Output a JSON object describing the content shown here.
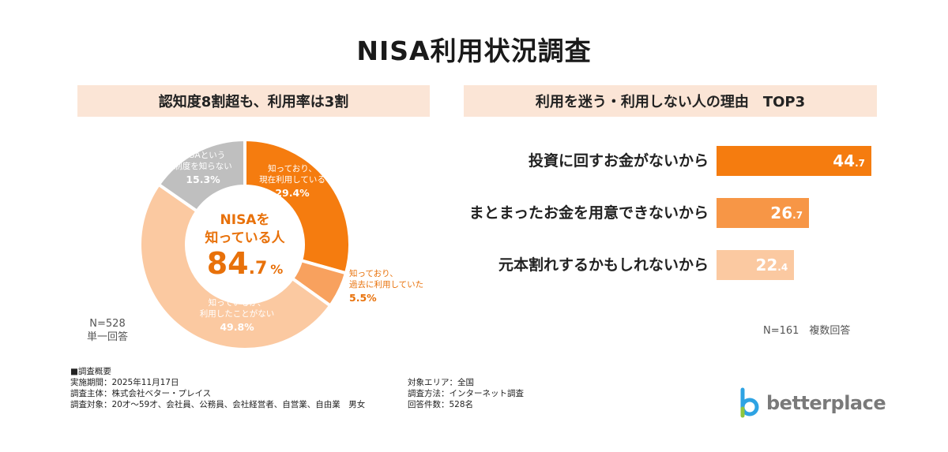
{
  "title": "NISA利用状況調査",
  "left_panel": {
    "header": "認知度8割超も、利用率は3割",
    "center_label_line1": "NISAを",
    "center_label_line2": "知っている人",
    "center_value_int": "84",
    "center_value_dec": ".7",
    "center_value_unit": "%",
    "note_line1": "N=528",
    "note_line2": "単一回答"
  },
  "right_panel": {
    "header": "利用を迷う・利用しない人の理由　TOP3",
    "note": "N=161　複数回答"
  },
  "chart_data": [
    {
      "type": "pie",
      "title": "認知度8割超も、利用率は3割",
      "slices": [
        {
          "label_lines": [
            "知っており、",
            "現在利用している"
          ],
          "value_text": "29.4%",
          "value": 29.4,
          "color": "#f57c0f"
        },
        {
          "label_lines": [
            "知っており、",
            "過去に利用していた"
          ],
          "value_text": "5.5%",
          "value": 5.5,
          "color": "#f8a15e"
        },
        {
          "label_lines": [
            "知っているが、",
            "利用したことがない"
          ],
          "value_text": "49.8%",
          "value": 49.8,
          "color": "#fbc9a1"
        },
        {
          "label_lines": [
            "NISAという",
            "制度を知らない"
          ],
          "value_text": "15.3%",
          "value": 15.3,
          "color": "#bfbfbf"
        }
      ]
    },
    {
      "type": "bar",
      "title": "利用を迷う・利用しない人の理由　TOP3",
      "categories": [
        "投資に回すお金がないから",
        "まとまったお金を用意できないから",
        "元本割れするかもしれないから"
      ],
      "values": [
        44.7,
        26.7,
        22.4
      ],
      "value_int": [
        "44",
        "26",
        "22"
      ],
      "value_dec": [
        ".7",
        ".7",
        ".4"
      ],
      "colors": [
        "#f57c0f",
        "#f79646",
        "#fbc9a1"
      ]
    }
  ],
  "footer": {
    "heading": "■調査概要",
    "left_lines": [
      "実施期間：2025年11月17日",
      "調査主体：株式会社ベター・プレイス",
      "調査対象：20才〜59才、会社員、公務員、会社経営者、自営業、自由業　男女"
    ],
    "right_lines": [
      "対象エリア：全国",
      "調査方法：インターネット調査",
      "回答件数：528名"
    ]
  },
  "logo": {
    "text": "betterplace",
    "icon": "b-logo-icon",
    "colors": [
      "#2ea3e3",
      "#8dc63f"
    ]
  }
}
